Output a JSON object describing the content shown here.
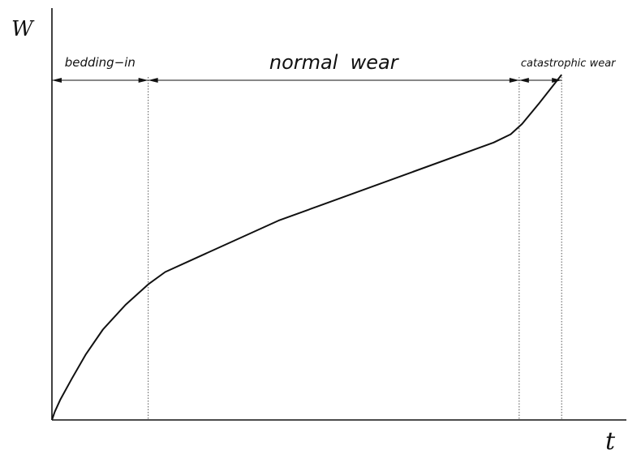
{
  "chart_data": {
    "type": "line",
    "title": "",
    "xlabel": "t",
    "ylabel": "W",
    "xlim": [
      0,
      100
    ],
    "ylim": [
      0,
      100
    ],
    "grid": false,
    "legend": "none",
    "series": [
      {
        "x": [
          0,
          0.5,
          1.5,
          3.5,
          6,
          9,
          13,
          17,
          20,
          24,
          40,
          60,
          78,
          81,
          83,
          86,
          90
        ],
        "y": [
          0,
          2,
          5,
          10,
          16,
          22,
          28,
          33,
          36,
          38.5,
          48.5,
          58.5,
          67.5,
          69.5,
          72,
          77,
          84
        ]
      }
    ],
    "regions": [
      {
        "label": "bedding−in",
        "x_start": 0,
        "x_end": 17
      },
      {
        "label": "normal  wear",
        "x_start": 17,
        "x_end": 82.5
      },
      {
        "label": "catastrophic wear",
        "x_start": 82.5,
        "x_end": 90
      }
    ]
  },
  "colors": {
    "line": "#111111",
    "axis": "#111111",
    "guide": "#555555"
  }
}
